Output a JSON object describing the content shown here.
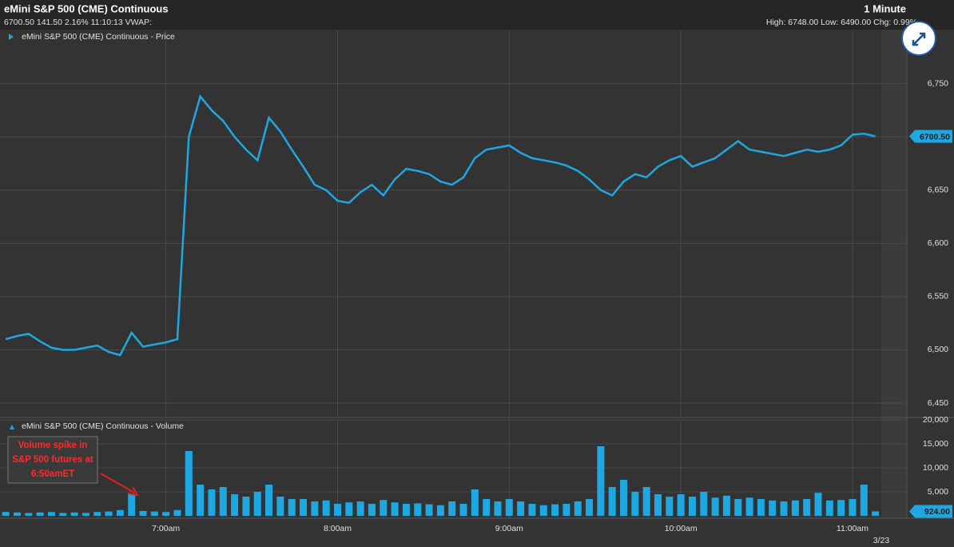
{
  "header": {
    "title": "eMini S&P 500 (CME) Continuous",
    "interval": "1 Minute",
    "quote": "6700.50 141.50 2.16% 11:10:13 VWAP:",
    "range": "High: 6748.00 Low: 6490.00 Chg: 0.99%"
  },
  "annotation": [
    "Volume spike in",
    "S&P 500 futures at",
    "6:50amET"
  ],
  "date_label": "3/23",
  "chart_data": [
    {
      "type": "line",
      "x": [
        364,
        368,
        372,
        376,
        380,
        384,
        388,
        392,
        396,
        400,
        404,
        408,
        412,
        416,
        420,
        424,
        428,
        432,
        436,
        440,
        444,
        448,
        452,
        456,
        460,
        464,
        468,
        472,
        476,
        480,
        484,
        488,
        492,
        496,
        500,
        504,
        508,
        512,
        516,
        520,
        524,
        528,
        532,
        536,
        540,
        544,
        548,
        552,
        556,
        560,
        564,
        568,
        572,
        576,
        580,
        584,
        588,
        592,
        596,
        600,
        604,
        608,
        612,
        616,
        620,
        624,
        628,
        632,
        636,
        640,
        644,
        648,
        652,
        656,
        660,
        664,
        668
      ],
      "series": [
        {
          "name": "eMini S&P 500 (CME) Continuous - Price",
          "color": "#1ea7e1",
          "values": [
            6510,
            6513,
            6515,
            6508,
            6502,
            6500,
            6500,
            6502,
            6504,
            6498,
            6495,
            6516,
            6503,
            6505,
            6507,
            6510,
            6700,
            6738,
            6725,
            6715,
            6700,
            6688,
            6678,
            6718,
            6705,
            6688,
            6672,
            6655,
            6650,
            6640,
            6638,
            6648,
            6655,
            6645,
            6660,
            6670,
            6668,
            6665,
            6658,
            6655,
            6662,
            6680,
            6688,
            6690,
            6692,
            6685,
            6680,
            6678,
            6676,
            6673,
            6668,
            6660,
            6650,
            6645,
            6658,
            6665,
            6662,
            6672,
            6678,
            6682,
            6672,
            6676,
            6680,
            6688,
            6696,
            6688,
            6686,
            6684,
            6682,
            6685,
            6688,
            6686,
            6688,
            6692,
            6702,
            6703,
            6700.5
          ],
          "value_labels": [
            null,
            null,
            null,
            null,
            null,
            null,
            null,
            null,
            null,
            null,
            null,
            null,
            null,
            null,
            null,
            null,
            null,
            null,
            null,
            null,
            null,
            null,
            null,
            null,
            null,
            null,
            null,
            null,
            null,
            null,
            null,
            null,
            null,
            null,
            null,
            null,
            null,
            null,
            null,
            null,
            null,
            null,
            null,
            null,
            null,
            null,
            null,
            null,
            null,
            null,
            null,
            null,
            null,
            null,
            null,
            null,
            null,
            null,
            null,
            null,
            null,
            null,
            null,
            null,
            null,
            null,
            null,
            null,
            null,
            null,
            null,
            null,
            null,
            null,
            null,
            null,
            "6700.50"
          ]
        }
      ],
      "xlim": [
        362,
        679
      ],
      "ylim": [
        6438,
        6800
      ],
      "yticks": [
        {
          "value": 6450,
          "label": "6,450"
        },
        {
          "value": 6500,
          "label": "6,500"
        },
        {
          "value": 6550,
          "label": "6,550"
        },
        {
          "value": 6600,
          "label": "6,600"
        },
        {
          "value": 6650,
          "label": "6,650"
        },
        {
          "value": 6700,
          "label": "6,700"
        },
        {
          "value": 6750,
          "label": "6,750"
        }
      ],
      "grid": true
    },
    {
      "type": "bar",
      "x": [
        364,
        368,
        372,
        376,
        380,
        384,
        388,
        392,
        396,
        400,
        404,
        408,
        412,
        416,
        420,
        424,
        428,
        432,
        436,
        440,
        444,
        448,
        452,
        456,
        460,
        464,
        468,
        472,
        476,
        480,
        484,
        488,
        492,
        496,
        500,
        504,
        508,
        512,
        516,
        520,
        524,
        528,
        532,
        536,
        540,
        544,
        548,
        552,
        556,
        560,
        564,
        568,
        572,
        576,
        580,
        584,
        588,
        592,
        596,
        600,
        604,
        608,
        612,
        616,
        620,
        624,
        628,
        632,
        636,
        640,
        644,
        648,
        652,
        656,
        660,
        664,
        668
      ],
      "series": [
        {
          "name": "eMini S&P 500 (CME) Continuous - Volume",
          "color": "#1ea7e1",
          "values": [
            800,
            700,
            600,
            700,
            800,
            600,
            700,
            600,
            800,
            900,
            1200,
            4500,
            1000,
            900,
            800,
            1200,
            13500,
            6500,
            5500,
            6000,
            4500,
            4000,
            5000,
            6500,
            4000,
            3500,
            3500,
            3000,
            3200,
            2500,
            2800,
            3000,
            2500,
            3300,
            2800,
            2500,
            2600,
            2400,
            2200,
            3000,
            2500,
            5500,
            3500,
            3000,
            3500,
            3000,
            2500,
            2200,
            2400,
            2500,
            3000,
            3500,
            14500,
            6000,
            7500,
            5000,
            6000,
            4500,
            4000,
            4500,
            4000,
            5000,
            3800,
            4200,
            3500,
            3800,
            3500,
            3200,
            3000,
            3200,
            3500,
            4800,
            3200,
            3300,
            3500,
            6500,
            924
          ],
          "value_labels": [
            null,
            null,
            null,
            null,
            null,
            null,
            null,
            null,
            null,
            null,
            null,
            null,
            null,
            null,
            null,
            null,
            null,
            null,
            null,
            null,
            null,
            null,
            null,
            null,
            null,
            null,
            null,
            null,
            null,
            null,
            null,
            null,
            null,
            null,
            null,
            null,
            null,
            null,
            null,
            null,
            null,
            null,
            null,
            null,
            null,
            null,
            null,
            null,
            null,
            null,
            null,
            null,
            null,
            null,
            null,
            null,
            null,
            null,
            null,
            null,
            null,
            null,
            null,
            null,
            null,
            null,
            null,
            null,
            null,
            null,
            null,
            null,
            null,
            null,
            null,
            null,
            "924.00"
          ]
        }
      ],
      "xlim": [
        362,
        679
      ],
      "ylim": [
        0,
        20000
      ],
      "yticks": [
        {
          "value": 5000,
          "label": "5,000"
        },
        {
          "value": 10000,
          "label": "10,000"
        },
        {
          "value": 15000,
          "label": "15,000"
        },
        {
          "value": 20000,
          "label": "20,000"
        }
      ],
      "xticks": [
        {
          "value": 420,
          "label": "7:00am"
        },
        {
          "value": 480,
          "label": "8:00am"
        },
        {
          "value": 540,
          "label": "9:00am"
        },
        {
          "value": 600,
          "label": "10:00am"
        },
        {
          "value": 660,
          "label": "11:00am"
        }
      ],
      "grid": true
    }
  ]
}
